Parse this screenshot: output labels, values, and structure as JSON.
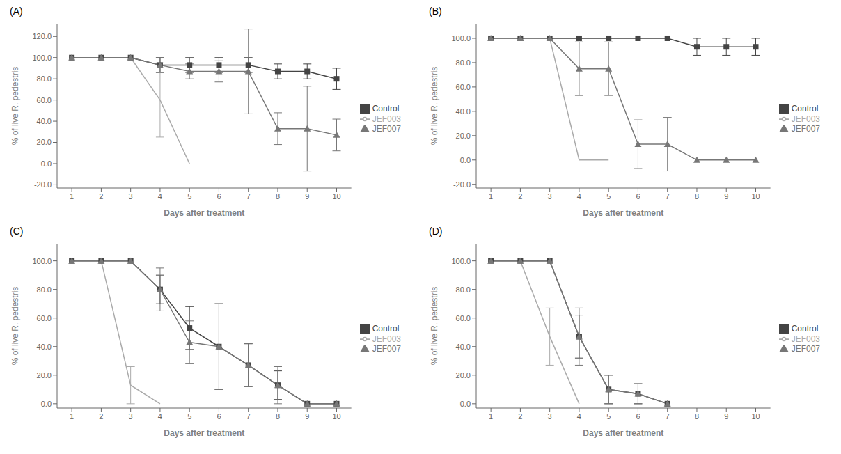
{
  "chart_data": [
    {
      "type": "line",
      "title": "(A)",
      "xlabel": "Days after treatment",
      "ylabel": "% of live R. pedestris",
      "x": [
        1,
        2,
        3,
        4,
        5,
        6,
        7,
        8,
        9,
        10
      ],
      "xlim": [
        0.5,
        10.5
      ],
      "xticks": [
        1,
        2,
        3,
        4,
        5,
        6,
        7,
        8,
        9,
        10
      ],
      "ylim": [
        -23,
        132
      ],
      "yticks": [
        {
          "value": -20,
          "label": "-20.0"
        },
        {
          "value": 0,
          "label": "0.0"
        },
        {
          "value": 20,
          "label": "20.0"
        },
        {
          "value": 40,
          "label": "40.0"
        },
        {
          "value": 60,
          "label": "60.0"
        },
        {
          "value": 80,
          "label": "80.0"
        },
        {
          "value": 100,
          "label": "100.0"
        },
        {
          "value": 120,
          "label": "120.0"
        }
      ],
      "grid": false,
      "legend": "right",
      "series": [
        {
          "name": "Control",
          "color": "#444444",
          "marker": "square",
          "values": [
            100,
            100,
            100,
            93,
            93,
            93,
            93,
            87,
            87,
            80
          ],
          "error": [
            0,
            0,
            0,
            7,
            7,
            7,
            7,
            7,
            7,
            10
          ]
        },
        {
          "name": "JEF003",
          "color": "#aaaaaa",
          "marker": "none",
          "values": [
            100,
            100,
            100,
            60,
            0,
            null,
            null,
            null,
            null,
            null
          ],
          "error": [
            0,
            0,
            0,
            35,
            0,
            null,
            null,
            null,
            null,
            null
          ]
        },
        {
          "name": "JEF007",
          "color": "#777777",
          "marker": "triangle",
          "values": [
            100,
            100,
            100,
            93,
            87,
            87,
            87,
            33,
            33,
            27
          ],
          "error": [
            0,
            0,
            0,
            7,
            7,
            10,
            40,
            15,
            40,
            15
          ]
        }
      ]
    },
    {
      "type": "line",
      "title": "(B)",
      "xlabel": "Days after treatment",
      "ylabel": "% of live R. pedestris",
      "x": [
        1,
        2,
        3,
        4,
        5,
        6,
        7,
        8,
        9,
        10
      ],
      "xlim": [
        0.5,
        10.5
      ],
      "xticks": [
        1,
        2,
        3,
        4,
        5,
        6,
        7,
        8,
        9,
        10
      ],
      "ylim": [
        -23,
        112
      ],
      "yticks": [
        {
          "value": -20,
          "label": "-20.0"
        },
        {
          "value": 0,
          "label": "0.0"
        },
        {
          "value": 20,
          "label": "20.0"
        },
        {
          "value": 40,
          "label": "40.0"
        },
        {
          "value": 60,
          "label": "60.0"
        },
        {
          "value": 80,
          "label": "80.0"
        },
        {
          "value": 100,
          "label": "100.0"
        }
      ],
      "grid": false,
      "legend": "right",
      "series": [
        {
          "name": "Control",
          "color": "#444444",
          "marker": "square",
          "values": [
            100,
            100,
            100,
            100,
            100,
            100,
            100,
            93,
            93,
            93
          ],
          "error": [
            0,
            0,
            0,
            0,
            0,
            0,
            0,
            7,
            7,
            7
          ]
        },
        {
          "name": "JEF003",
          "color": "#aaaaaa",
          "marker": "none",
          "values": [
            100,
            100,
            100,
            0,
            0,
            null,
            null,
            null,
            null,
            null
          ],
          "error": [
            0,
            0,
            0,
            0,
            0,
            null,
            null,
            null,
            null,
            null
          ]
        },
        {
          "name": "JEF007",
          "color": "#777777",
          "marker": "triangle",
          "values": [
            100,
            100,
            100,
            75,
            75,
            13,
            13,
            0,
            0,
            0
          ],
          "error": [
            0,
            0,
            0,
            22,
            22,
            20,
            22,
            0,
            0,
            0
          ]
        }
      ]
    },
    {
      "type": "line",
      "title": "(C)",
      "xlabel": "Days after treatment",
      "ylabel": "% of live R. pedestris",
      "x": [
        1,
        2,
        3,
        4,
        5,
        6,
        7,
        8,
        9,
        10
      ],
      "xlim": [
        0.5,
        10.5
      ],
      "xticks": [
        1,
        2,
        3,
        4,
        5,
        6,
        7,
        8,
        9,
        10
      ],
      "ylim": [
        -3,
        112
      ],
      "yticks": [
        {
          "value": 0,
          "label": "0.0"
        },
        {
          "value": 20,
          "label": "20.0"
        },
        {
          "value": 40,
          "label": "40.0"
        },
        {
          "value": 60,
          "label": "60.0"
        },
        {
          "value": 80,
          "label": "80.0"
        },
        {
          "value": 100,
          "label": "100.0"
        }
      ],
      "grid": false,
      "legend": "right",
      "series": [
        {
          "name": "Control",
          "color": "#444444",
          "marker": "square",
          "values": [
            100,
            100,
            100,
            80,
            53,
            40,
            27,
            13,
            0,
            0
          ],
          "error": [
            0,
            0,
            0,
            10,
            15,
            30,
            15,
            10,
            0,
            0
          ]
        },
        {
          "name": "JEF003",
          "color": "#aaaaaa",
          "marker": "none",
          "values": [
            100,
            100,
            13,
            0,
            null,
            null,
            null,
            null,
            null,
            null
          ],
          "error": [
            0,
            0,
            13,
            0,
            null,
            null,
            null,
            null,
            null,
            null
          ]
        },
        {
          "name": "JEF007",
          "color": "#777777",
          "marker": "triangle",
          "values": [
            100,
            100,
            100,
            80,
            43,
            40,
            27,
            13,
            0,
            0
          ],
          "error": [
            0,
            0,
            0,
            15,
            15,
            30,
            15,
            13,
            0,
            0
          ]
        }
      ]
    },
    {
      "type": "line",
      "title": "(D)",
      "xlabel": "Days after treatment",
      "ylabel": "% of live R. pedestris",
      "x": [
        1,
        2,
        3,
        4,
        5,
        6,
        7,
        8,
        9,
        10
      ],
      "xlim": [
        0.5,
        10.5
      ],
      "xticks": [
        1,
        2,
        3,
        4,
        5,
        6,
        7,
        8,
        9,
        10
      ],
      "ylim": [
        -3,
        112
      ],
      "yticks": [
        {
          "value": 0,
          "label": "0.0"
        },
        {
          "value": 20,
          "label": "20.0"
        },
        {
          "value": 40,
          "label": "40.0"
        },
        {
          "value": 60,
          "label": "60.0"
        },
        {
          "value": 80,
          "label": "80.0"
        },
        {
          "value": 100,
          "label": "100.0"
        }
      ],
      "grid": false,
      "legend": "right",
      "series": [
        {
          "name": "Control",
          "color": "#444444",
          "marker": "square",
          "values": [
            100,
            100,
            100,
            47,
            10,
            7,
            0,
            null,
            null,
            null
          ],
          "error": [
            0,
            0,
            0,
            15,
            10,
            7,
            0,
            null,
            null,
            null
          ]
        },
        {
          "name": "JEF003",
          "color": "#aaaaaa",
          "marker": "none",
          "values": [
            100,
            100,
            47,
            0,
            null,
            null,
            null,
            null,
            null,
            null
          ],
          "error": [
            0,
            0,
            20,
            0,
            null,
            null,
            null,
            null,
            null,
            null
          ]
        },
        {
          "name": "JEF007",
          "color": "#777777",
          "marker": "triangle",
          "values": [
            100,
            100,
            100,
            47,
            10,
            7,
            0,
            null,
            null,
            null
          ],
          "error": [
            0,
            0,
            0,
            20,
            10,
            7,
            0,
            null,
            null,
            null
          ]
        }
      ]
    }
  ]
}
